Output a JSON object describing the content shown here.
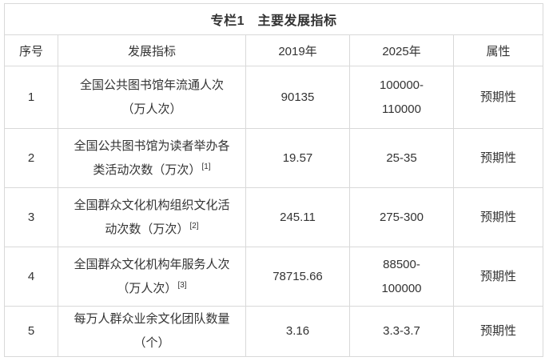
{
  "table": {
    "title": "专栏1　主要发展指标",
    "columns": [
      {
        "key": "no",
        "label": "序号"
      },
      {
        "key": "indicator",
        "label": "发展指标"
      },
      {
        "key": "y2019",
        "label": "2019年"
      },
      {
        "key": "y2025",
        "label": "2025年"
      },
      {
        "key": "attr",
        "label": "属性"
      }
    ],
    "rows": [
      {
        "no": "1",
        "indicator": "全国公共图书馆年流通人次\n（万人次）",
        "sup": "",
        "y2019": "90135",
        "y2025": "100000-\n110000",
        "attr": "预期性"
      },
      {
        "no": "2",
        "indicator": "全国公共图书馆为读者举办各\n类活动次数（万次）",
        "sup": "[1]",
        "y2019": "19.57",
        "y2025": "25-35",
        "attr": "预期性"
      },
      {
        "no": "3",
        "indicator": "全国群众文化机构组织文化活\n动次数（万次）",
        "sup": "[2]",
        "y2019": "245.11",
        "y2025": "275-300",
        "attr": "预期性"
      },
      {
        "no": "4",
        "indicator": "全国群众文化机构年服务人次\n（万人次）",
        "sup": "[3]",
        "y2019": "78715.66",
        "y2025": "88500-\n100000",
        "attr": "预期性"
      },
      {
        "no": "5",
        "indicator": "每万人群众业余文化团队数量\n（个）",
        "sup": "",
        "y2019": "3.16",
        "y2025": "3.3-3.7",
        "attr": "预期性"
      }
    ]
  },
  "colors": {
    "border": "#d9d9d9",
    "text": "#333333",
    "background": "#ffffff"
  }
}
